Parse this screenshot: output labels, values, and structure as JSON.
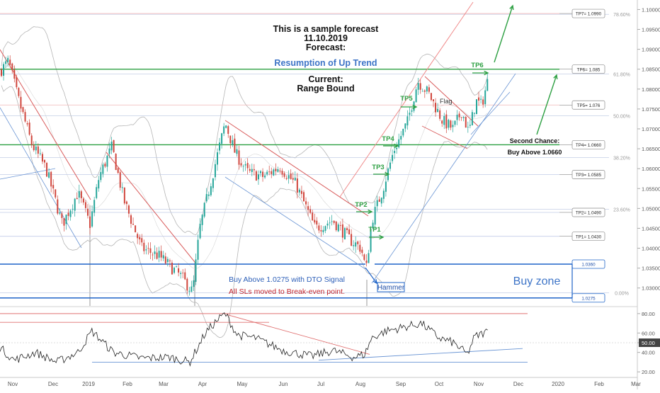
{
  "chart_data": {
    "type": "candlestick",
    "title": "This is a sample forecast",
    "date": "11.10.2019",
    "forecast_label": "Forecast:",
    "forecast_value": "Resumption of Up Trend",
    "current_label": "Current:",
    "current_value": "Range Bound",
    "ylim": [
      1.0255,
      1.1015
    ],
    "y_ticks": [
      "1.10000",
      "1.09500",
      "1.09000",
      "1.08500",
      "1.08000",
      "1.07500",
      "1.07000",
      "1.06500",
      "1.06000",
      "1.05500",
      "1.05000",
      "1.04500",
      "1.04000",
      "1.03500",
      "1.03000"
    ],
    "x_ticks": [
      "Nov",
      "Dec",
      "2019",
      "Feb",
      "Mar",
      "Apr",
      "May",
      "Jun",
      "Jul",
      "Aug",
      "Sep",
      "Oct",
      "Nov",
      "Dec",
      "2020",
      "Feb",
      "Mar"
    ],
    "fib_levels": [
      {
        "label": "78.60%",
        "price": 1.0988
      },
      {
        "label": "61.80%",
        "price": 1.0838
      },
      {
        "label": "50.00%",
        "price": 1.0733
      },
      {
        "label": "38.20%",
        "price": 1.0628
      },
      {
        "label": "23.60%",
        "price": 1.0498
      },
      {
        "label": "0.00%",
        "price": 1.0288
      }
    ],
    "targets": [
      {
        "label": "TP7= 1.0990",
        "price": 1.099
      },
      {
        "label": "TP6= 1.085",
        "price": 1.085
      },
      {
        "label": "TP5= 1.076",
        "price": 1.076
      },
      {
        "label": "TP4= 1.0660",
        "price": 1.066
      },
      {
        "label": "TP3= 1.0585",
        "price": 1.0585
      },
      {
        "label": "TP2= 1.0490",
        "price": 1.049
      },
      {
        "label": "TP1= 1.0430",
        "price": 1.043
      }
    ],
    "zone_labels": [
      {
        "label": "1.0360",
        "price": 1.036
      },
      {
        "label": "1.0275",
        "price": 1.0275
      }
    ],
    "tp_markers": [
      "TP1",
      "TP2",
      "TP3",
      "TP4",
      "TP5",
      "TP6"
    ],
    "annotations": {
      "flag": "Flag",
      "second_chance_1": "Second Chance:",
      "second_chance_2": "Buy Above 1.0660",
      "buy_above": "Buy Above 1.0275 with DTO Signal",
      "sl_moved": "All SLs moved to Break-even point.",
      "hammer": "Hammer",
      "buy_zone": "Buy zone"
    },
    "oscillator": {
      "y_ticks": [
        "80.00",
        "60.00",
        "50.00",
        "40.00",
        "20.00"
      ],
      "current_value": "50.00",
      "ylim": [
        15,
        85
      ],
      "levels": [
        80,
        71,
        30
      ]
    },
    "colors": {
      "bull": "#26a69a",
      "bear": "#d0463d",
      "green": "#2ea043",
      "blue": "#1f64c8",
      "red": "#d93a3a"
    }
  }
}
